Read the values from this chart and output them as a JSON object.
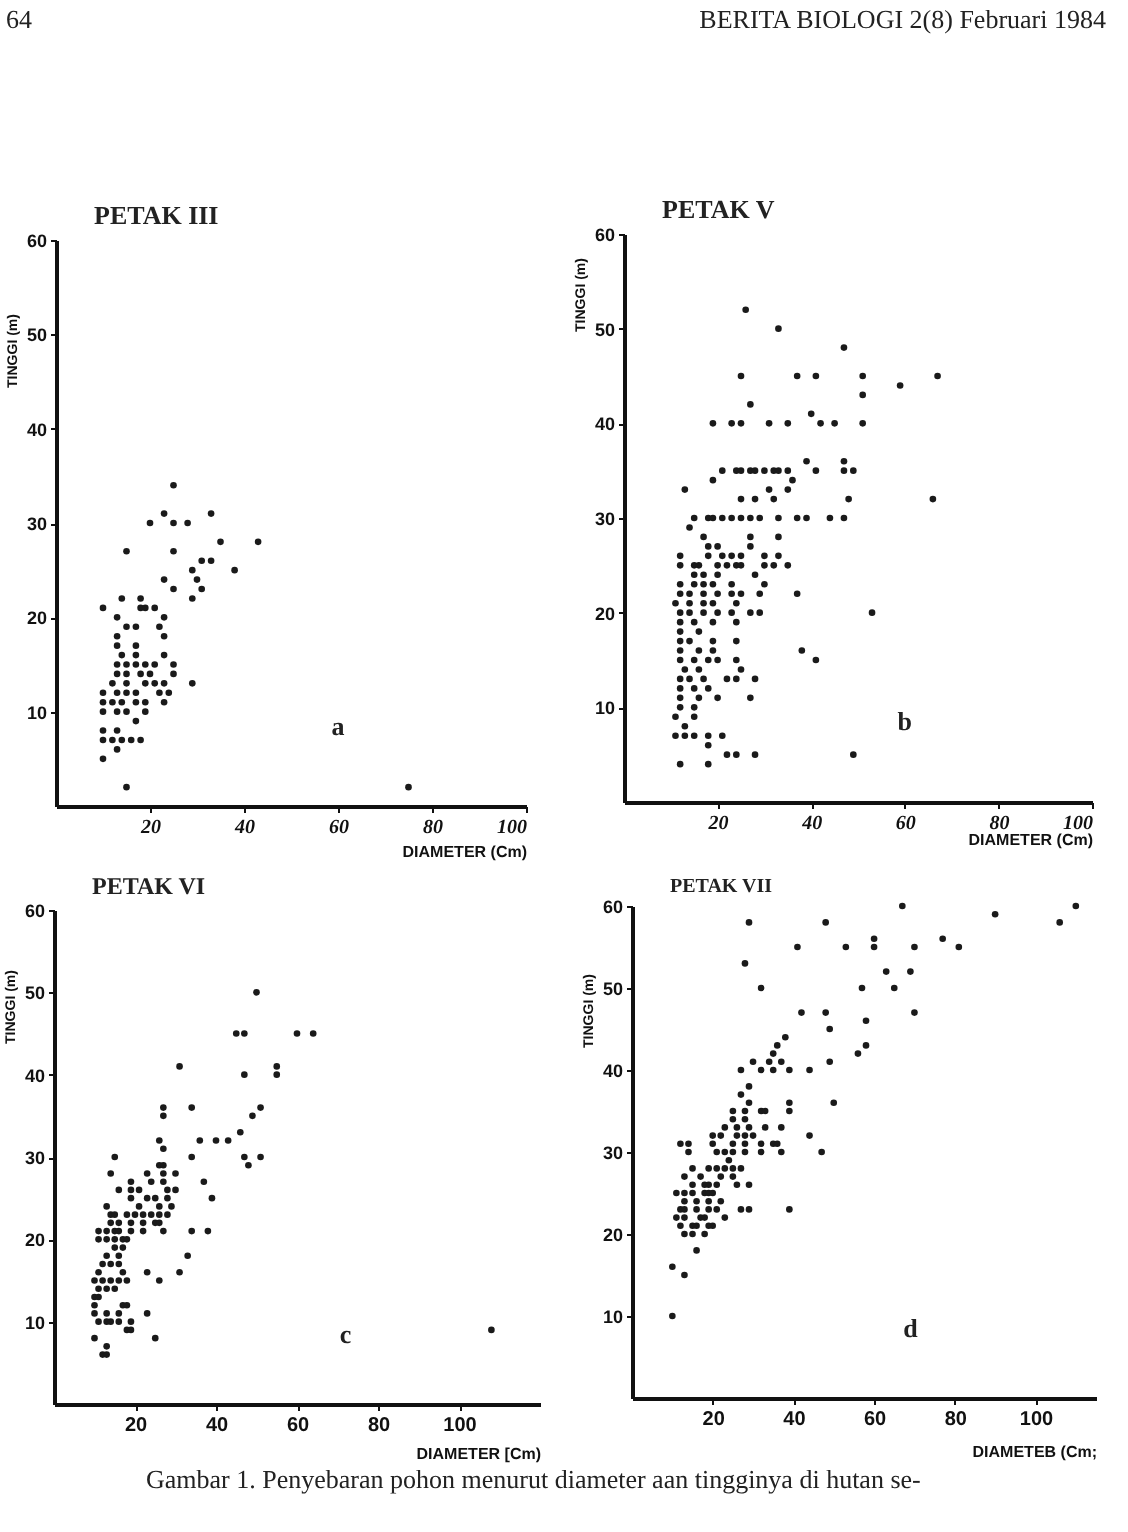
{
  "chart_data": [
    {
      "type": "scatter",
      "title": "PETAK III",
      "xlabel": "DIAMETER (Cm)",
      "ylabel": "TINGGI (m)",
      "color": "#1a1a1a",
      "marker": "circle",
      "xlim": [
        0,
        100
      ],
      "ylim": [
        0,
        60
      ],
      "xticks": [
        20,
        40,
        60,
        80,
        100
      ],
      "yticks": [
        10,
        20,
        30,
        40,
        50,
        60
      ],
      "annotations": [
        "a",
        "64",
        "BERITA BIOLOGI 2(8) Februari 1984"
      ],
      "x": [
        10,
        13,
        15,
        10,
        12,
        14,
        16,
        18,
        10,
        13,
        17,
        10,
        13,
        15,
        19,
        10,
        12,
        14,
        17,
        19,
        23,
        10,
        13,
        15,
        17,
        22,
        24,
        12,
        15,
        19,
        21,
        23,
        29,
        13,
        15,
        18,
        20,
        25,
        13,
        15,
        17,
        19,
        21,
        25,
        14,
        17,
        23,
        17,
        13,
        13,
        23,
        15,
        17,
        22,
        13,
        23,
        10,
        18,
        19,
        21,
        14,
        18,
        29,
        25,
        31,
        23,
        30,
        29,
        38,
        31,
        33,
        15,
        25,
        35,
        43,
        20,
        25,
        28,
        23,
        33,
        25,
        75
      ],
      "values": [
        5,
        6,
        2,
        7,
        7,
        7,
        7,
        7,
        8,
        8,
        9,
        10,
        10,
        10,
        10,
        11,
        11,
        11,
        11,
        11,
        11,
        12,
        12,
        12,
        12,
        12,
        12,
        13,
        13,
        13,
        13,
        13,
        13,
        14,
        14,
        14,
        14,
        14,
        15,
        15,
        15,
        15,
        15,
        15,
        16,
        16,
        16,
        17,
        17,
        18,
        18,
        19,
        19,
        19,
        20,
        20,
        21,
        21,
        21,
        21,
        22,
        22,
        22,
        23,
        23,
        24,
        24,
        25,
        25,
        26,
        26,
        27,
        27,
        28,
        28,
        30,
        30,
        30,
        31,
        31,
        34,
        2
      ]
    },
    {
      "type": "scatter",
      "title": "PETAK V",
      "xlabel": "DIAMETER (Cm)",
      "ylabel": "TINGGI (m)",
      "color": "#1a1a1a",
      "marker": "circle",
      "xlim": [
        0,
        100
      ],
      "ylim": [
        0,
        60
      ],
      "xticks": [
        20,
        40,
        60,
        80,
        100
      ],
      "yticks": [
        10,
        20,
        30,
        40,
        50,
        60
      ],
      "annotations": [
        "b"
      ],
      "x": [
        26,
        33,
        47,
        25,
        37,
        41,
        51,
        67,
        59,
        51,
        27,
        19,
        23,
        25,
        31,
        35,
        42,
        45,
        51,
        40,
        39,
        47,
        21,
        24,
        25,
        27,
        28,
        30,
        32,
        33,
        35,
        41,
        47,
        49,
        19,
        13,
        31,
        35,
        36,
        25,
        28,
        32,
        48,
        66,
        15,
        18,
        19,
        21,
        23,
        25,
        27,
        29,
        33,
        37,
        39,
        44,
        47,
        14,
        17,
        27,
        33,
        18,
        20,
        27,
        12,
        18,
        21,
        23,
        25,
        30,
        33,
        12,
        15,
        16,
        20,
        22,
        24,
        25,
        30,
        32,
        35,
        15,
        17,
        20,
        28,
        12,
        15,
        17,
        19,
        23,
        30,
        12,
        14,
        17,
        20,
        23,
        25,
        29,
        37,
        11,
        14,
        17,
        19,
        24,
        12,
        14,
        17,
        20,
        23,
        27,
        29,
        53,
        12,
        15,
        19,
        24,
        12,
        16,
        12,
        14,
        19,
        24,
        12,
        16,
        19,
        38,
        41,
        12,
        15,
        18,
        20,
        24,
        13,
        16,
        25,
        12,
        14,
        17,
        22,
        24,
        28,
        12,
        15,
        18,
        12,
        16,
        20,
        27,
        12,
        15,
        11,
        15,
        13,
        11,
        13,
        15,
        18,
        21,
        18,
        22,
        24,
        28,
        49,
        12,
        18
      ],
      "values": [
        52,
        50,
        48,
        45,
        45,
        45,
        45,
        45,
        44,
        43,
        42,
        40,
        40,
        40,
        40,
        40,
        40,
        40,
        40,
        41,
        36,
        36,
        35,
        35,
        35,
        35,
        35,
        35,
        35,
        35,
        35,
        35,
        35,
        35,
        34,
        33,
        33,
        33,
        34,
        32,
        32,
        32,
        32,
        32,
        30,
        30,
        30,
        30,
        30,
        30,
        30,
        30,
        30,
        30,
        30,
        30,
        30,
        29,
        28,
        28,
        28,
        27,
        27,
        27,
        26,
        26,
        26,
        26,
        26,
        26,
        26,
        25,
        25,
        25,
        25,
        25,
        25,
        25,
        25,
        25,
        25,
        24,
        24,
        24,
        24,
        23,
        23,
        23,
        23,
        23,
        23,
        22,
        22,
        22,
        22,
        22,
        22,
        22,
        22,
        21,
        21,
        21,
        21,
        21,
        20,
        20,
        20,
        20,
        20,
        20,
        20,
        20,
        19,
        19,
        19,
        19,
        18,
        18,
        17,
        17,
        17,
        17,
        16,
        16,
        16,
        16,
        15,
        15,
        15,
        15,
        15,
        15,
        14,
        14,
        14,
        13,
        13,
        13,
        13,
        13,
        13,
        12,
        12,
        12,
        11,
        11,
        11,
        11,
        10,
        10,
        9,
        9,
        8,
        7,
        7,
        7,
        7,
        7,
        6,
        5,
        5,
        5,
        5,
        4,
        4
      ]
    },
    {
      "type": "scatter",
      "title": "PETAK VI",
      "xlabel": "DIAMETER [Cm)",
      "ylabel": "TINGGI (m)",
      "color": "#1a1a1a",
      "marker": "circle",
      "xlim": [
        0,
        120
      ],
      "ylim": [
        0,
        60
      ],
      "xticks": [
        20,
        40,
        60,
        80,
        100
      ],
      "yticks": [
        10,
        20,
        30,
        40,
        50,
        60
      ],
      "annotations": [
        "c"
      ],
      "x": [
        50,
        45,
        47,
        60,
        64,
        31,
        55,
        55,
        47,
        27,
        27,
        34,
        51,
        49,
        46,
        36,
        40,
        43,
        26,
        27,
        15,
        34,
        47,
        51,
        48,
        26,
        27,
        14,
        23,
        27,
        30,
        24,
        27,
        37,
        19,
        16,
        19,
        21,
        30,
        28,
        19,
        23,
        25,
        28,
        39,
        13,
        21,
        26,
        29,
        14,
        15,
        18,
        20,
        22,
        24,
        26,
        28,
        14,
        16,
        19,
        22,
        25,
        26,
        22,
        27,
        34,
        38,
        11,
        13,
        15,
        16,
        19,
        11,
        13,
        15,
        17,
        18,
        17,
        15,
        16,
        13,
        33,
        12,
        14,
        16,
        11,
        17,
        23,
        31,
        10,
        12,
        14,
        16,
        18,
        26,
        11,
        13,
        15,
        10,
        11,
        10,
        17,
        18,
        10,
        13,
        16,
        23,
        11,
        13,
        14,
        16,
        19,
        18,
        19,
        10,
        25,
        13,
        12,
        13,
        108
      ],
      "values": [
        50,
        45,
        45,
        45,
        45,
        41,
        41,
        40,
        40,
        36,
        35,
        36,
        36,
        35,
        33,
        32,
        32,
        32,
        32,
        31,
        30,
        30,
        30,
        30,
        29,
        29,
        29,
        28,
        28,
        28,
        28,
        27,
        27,
        27,
        27,
        26,
        26,
        26,
        26,
        26,
        25,
        25,
        25,
        25,
        25,
        24,
        24,
        24,
        24,
        23,
        23,
        23,
        23,
        23,
        23,
        23,
        23,
        22,
        22,
        22,
        22,
        22,
        22,
        21,
        21,
        21,
        21,
        21,
        21,
        21,
        21,
        21,
        20,
        20,
        20,
        20,
        20,
        19,
        19,
        18,
        18,
        18,
        17,
        17,
        17,
        16,
        16,
        16,
        16,
        15,
        15,
        15,
        15,
        15,
        15,
        14,
        14,
        14,
        13,
        13,
        12,
        12,
        12,
        11,
        11,
        11,
        11,
        10,
        10,
        10,
        10,
        10,
        9,
        9,
        8,
        8,
        7,
        6,
        6,
        9
      ]
    },
    {
      "type": "scatter",
      "title": "PETAK VII",
      "xlabel": "DIAMETEB (Cm;",
      "ylabel": "TINGGI (m)",
      "color": "#1a1a1a",
      "marker": "circle",
      "xlim": [
        0,
        115
      ],
      "ylim": [
        0,
        60
      ],
      "xticks": [
        20,
        40,
        60,
        80,
        100
      ],
      "yticks": [
        10,
        20,
        30,
        40,
        50,
        60
      ],
      "annotations": [
        "d",
        "Gambar 1. Penyebaran pohon menurut diameter aan tingginya di hutan se-"
      ],
      "x": [
        10,
        10,
        13,
        12,
        14,
        14,
        15,
        17,
        13,
        15,
        18,
        19,
        21,
        11,
        13,
        15,
        18,
        19,
        20,
        13,
        16,
        19,
        22,
        12,
        13,
        16,
        19,
        21,
        27,
        29,
        39,
        11,
        13,
        17,
        18,
        23,
        12,
        15,
        16,
        19,
        20,
        13,
        15,
        18,
        16,
        19,
        21,
        23,
        25,
        27,
        24,
        22,
        25,
        26,
        29,
        21,
        23,
        25,
        28,
        32,
        37,
        47,
        20,
        25,
        28,
        32,
        35,
        36,
        20,
        22,
        26,
        28,
        30,
        44,
        23,
        26,
        29,
        33,
        37,
        25,
        28,
        28,
        32,
        33,
        39,
        25,
        39,
        29,
        50,
        27,
        29,
        27,
        32,
        35,
        39,
        44,
        30,
        34,
        37,
        49,
        35,
        36,
        38,
        56,
        58,
        49,
        48,
        42,
        58,
        57,
        65,
        32,
        28,
        63,
        69,
        70,
        41,
        53,
        60,
        60,
        70,
        77,
        81,
        29,
        48,
        67,
        90,
        106,
        110
      ],
      "values": [
        16,
        10,
        15,
        31,
        31,
        30,
        28,
        27,
        27,
        26,
        26,
        26,
        26,
        25,
        25,
        25,
        25,
        25,
        25,
        24,
        24,
        24,
        24,
        23,
        23,
        23,
        23,
        23,
        23,
        23,
        23,
        22,
        22,
        22,
        22,
        22,
        21,
        21,
        21,
        21,
        21,
        20,
        20,
        20,
        18,
        28,
        28,
        28,
        28,
        28,
        29,
        27,
        27,
        26,
        26,
        30,
        30,
        30,
        30,
        30,
        30,
        30,
        31,
        31,
        31,
        31,
        31,
        31,
        32,
        32,
        32,
        32,
        32,
        32,
        33,
        33,
        33,
        33,
        33,
        34,
        34,
        35,
        35,
        35,
        35,
        35,
        36,
        36,
        36,
        37,
        38,
        40,
        40,
        40,
        40,
        40,
        41,
        41,
        41,
        41,
        42,
        43,
        44,
        42,
        43,
        45,
        47,
        47,
        46,
        50,
        50,
        50,
        53,
        52,
        52,
        47,
        55,
        55,
        56,
        55,
        55,
        56,
        55,
        58,
        58,
        60,
        59,
        58,
        60
      ]
    }
  ]
}
